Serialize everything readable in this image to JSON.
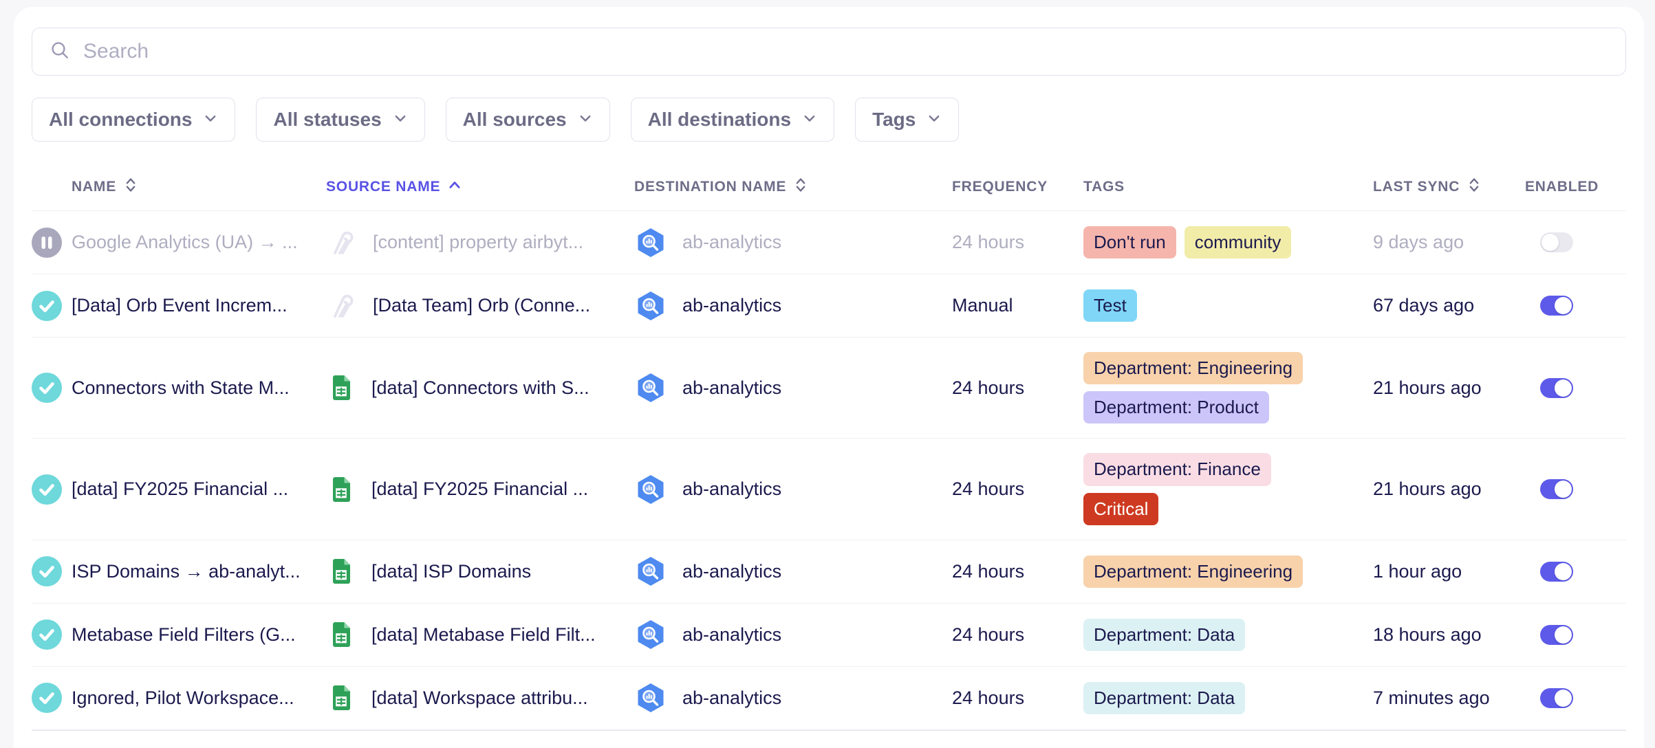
{
  "search": {
    "placeholder": "Search"
  },
  "filters": [
    {
      "label": "All connections"
    },
    {
      "label": "All statuses"
    },
    {
      "label": "All sources"
    },
    {
      "label": "All destinations"
    },
    {
      "label": "Tags"
    }
  ],
  "table": {
    "columns": {
      "name": "NAME",
      "source": "SOURCE NAME",
      "destination": "DESTINATION NAME",
      "frequency": "FREQUENCY",
      "tags": "TAGS",
      "last_sync": "LAST SYNC",
      "enabled": "ENABLED"
    },
    "sort": {
      "column": "SOURCE NAME",
      "direction": "ascending"
    },
    "rows": [
      {
        "status": "paused",
        "name": "Google Analytics (UA) → ...",
        "source_icon": "airbyte",
        "source": "[content] property airbyt...",
        "destination_icon": "bigquery",
        "destination": "ab-analytics",
        "frequency": "24 hours",
        "tags": [
          {
            "label": "Don't run",
            "bg": "#F5B5AC",
            "fg": "#1B1A4E"
          },
          {
            "label": "community",
            "bg": "#F2ECA9",
            "fg": "#1B1A4E"
          }
        ],
        "last_sync": "9 days ago",
        "enabled": false
      },
      {
        "status": "enabled",
        "name": "[Data] Orb Event Increm...",
        "source_icon": "airbyte",
        "source": "[Data Team] Orb (Conne...",
        "destination_icon": "bigquery",
        "destination": "ab-analytics",
        "frequency": "Manual",
        "tags": [
          {
            "label": "Test",
            "bg": "#7FD6F7",
            "fg": "#1B1A4E"
          }
        ],
        "last_sync": "67 days ago",
        "enabled": true
      },
      {
        "status": "enabled",
        "name": "Connectors with State M...",
        "source_icon": "google-sheets",
        "source": "[data] Connectors with S...",
        "destination_icon": "bigquery",
        "destination": "ab-analytics",
        "frequency": "24 hours",
        "tags": [
          {
            "label": "Department: Engineering",
            "bg": "#F8D2AB",
            "fg": "#1B1A4E"
          },
          {
            "label": "Department: Product",
            "bg": "#CCC5F9",
            "fg": "#1B1A4E"
          }
        ],
        "last_sync": "21 hours ago",
        "enabled": true
      },
      {
        "status": "enabled",
        "name": "[data] FY2025 Financial ...",
        "source_icon": "google-sheets",
        "source": "[data] FY2025 Financial ...",
        "destination_icon": "bigquery",
        "destination": "ab-analytics",
        "frequency": "24 hours",
        "tags": [
          {
            "label": "Department: Finance",
            "bg": "#FADDE4",
            "fg": "#1B1A4E"
          },
          {
            "label": "Critical",
            "bg": "#CE3A21",
            "fg": "#FFFFFF"
          }
        ],
        "last_sync": "21 hours ago",
        "enabled": true
      },
      {
        "status": "enabled",
        "name": "ISP Domains → ab-analyt...",
        "source_icon": "google-sheets",
        "source": "[data] ISP Domains",
        "destination_icon": "bigquery",
        "destination": "ab-analytics",
        "frequency": "24 hours",
        "tags": [
          {
            "label": "Department: Engineering",
            "bg": "#F8D2AB",
            "fg": "#1B1A4E"
          }
        ],
        "last_sync": "1 hour ago",
        "enabled": true
      },
      {
        "status": "enabled",
        "name": "Metabase Field Filters (G...",
        "source_icon": "google-sheets",
        "source": "[data] Metabase Field Filt...",
        "destination_icon": "bigquery",
        "destination": "ab-analytics",
        "frequency": "24 hours",
        "tags": [
          {
            "label": "Department: Data",
            "bg": "#DCF1F3",
            "fg": "#1B1A4E"
          }
        ],
        "last_sync": "18 hours ago",
        "enabled": true
      },
      {
        "status": "enabled",
        "name": "Ignored, Pilot Workspace...",
        "source_icon": "google-sheets",
        "source": "[data] Workspace attribu...",
        "destination_icon": "bigquery",
        "destination": "ab-analytics",
        "frequency": "24 hours",
        "tags": [
          {
            "label": "Department: Data",
            "bg": "#DCF1F3",
            "fg": "#1B1A4E"
          }
        ],
        "last_sync": "7 minutes ago",
        "enabled": true
      }
    ]
  },
  "colors": {
    "accent_toggle_on": "#5D5AEA",
    "toggle_off_track": "#EAE9F0",
    "status_enabled": "#6ED8DB",
    "status_paused": "#A9A7BC",
    "sorted_header": "#5952E5",
    "critical_tag": "#CE3A21",
    "page_background": "#F7F7FA"
  }
}
